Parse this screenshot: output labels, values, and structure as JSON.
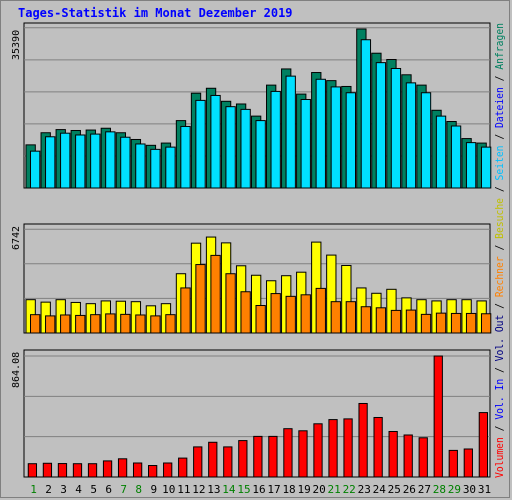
{
  "title": "Tages-Statistik im Monat Dezember 2019",
  "colors": {
    "anfragen": "#008060",
    "dateien": "#00e0ff",
    "seiten": "#00c0ff",
    "besuche": "#ffff00",
    "rechner": "#ff8000",
    "volumen": "#ff0000",
    "panel_bg": "#c0c0c0",
    "grid": "#808080",
    "weekday": "#000000",
    "weekend": "#008000",
    "title": "#0000ff"
  },
  "right_legend": {
    "volumen": "Volumen",
    "vol_in": "Vol. In",
    "vol_out": "Vol. Out",
    "rechner": "Rechner",
    "besuche": "Besuche",
    "seiten": "Seiten",
    "dateien": "Dateien",
    "anfragen": "Anfragen",
    "sep": "/"
  },
  "panels": {
    "top_max_label": "35390",
    "mid_max_label": "6742",
    "bot_max_label": "864.08"
  },
  "chart_data": [
    {
      "type": "bar",
      "panel": "top",
      "categories": [
        "1",
        "2",
        "3",
        "4",
        "5",
        "6",
        "7",
        "8",
        "9",
        "10",
        "11",
        "12",
        "13",
        "14",
        "15",
        "16",
        "17",
        "18",
        "19",
        "20",
        "21",
        "22",
        "23",
        "24",
        "25",
        "26",
        "27",
        "28",
        "29",
        "30",
        "31"
      ],
      "ylim": [
        0,
        35390
      ],
      "series": [
        {
          "name": "Anfragen",
          "values": [
            9600,
            12300,
            13000,
            12800,
            12900,
            13300,
            12300,
            10800,
            9500,
            10000,
            15000,
            21100,
            22200,
            19300,
            18700,
            16000,
            22900,
            26500,
            20900,
            25700,
            23900,
            22600,
            35390,
            30000,
            28600,
            25200,
            22900,
            17300,
            14800,
            11000,
            10000
          ]
        },
        {
          "name": "Dateien",
          "values": [
            8200,
            11400,
            12200,
            11800,
            12000,
            12500,
            11300,
            9800,
            8600,
            9100,
            13700,
            19500,
            20600,
            18100,
            17500,
            15000,
            21500,
            24900,
            19700,
            24200,
            22500,
            21200,
            33000,
            27900,
            26600,
            23400,
            21200,
            16000,
            13800,
            10100,
            9100
          ]
        }
      ]
    },
    {
      "type": "bar",
      "panel": "middle",
      "categories": [
        "1",
        "2",
        "3",
        "4",
        "5",
        "6",
        "7",
        "8",
        "9",
        "10",
        "11",
        "12",
        "13",
        "14",
        "15",
        "16",
        "17",
        "18",
        "19",
        "20",
        "21",
        "22",
        "23",
        "24",
        "25",
        "26",
        "27",
        "28",
        "29",
        "30",
        "31"
      ],
      "ylim": [
        0,
        6742
      ],
      "series": [
        {
          "name": "Besuche",
          "values": [
            2180,
            2020,
            2180,
            2000,
            1920,
            2100,
            2080,
            2050,
            1780,
            1920,
            3880,
            5880,
            6280,
            5900,
            4400,
            3780,
            3420,
            3750,
            3980,
            5950,
            5100,
            4420,
            2950,
            2600,
            2860,
            2300,
            2180,
            2100,
            2180,
            2180,
            2100
          ]
        },
        {
          "name": "Rechner",
          "values": [
            1200,
            1120,
            1180,
            1150,
            1200,
            1250,
            1220,
            1180,
            1120,
            1200,
            2950,
            4480,
            5080,
            3880,
            2700,
            1800,
            2580,
            2400,
            2500,
            2920,
            2050,
            2050,
            1720,
            1650,
            1480,
            1500,
            1220,
            1300,
            1280,
            1280,
            1260
          ]
        }
      ]
    },
    {
      "type": "bar",
      "panel": "bottom",
      "categories": [
        "1",
        "2",
        "3",
        "4",
        "5",
        "6",
        "7",
        "8",
        "9",
        "10",
        "11",
        "12",
        "13",
        "14",
        "15",
        "16",
        "17",
        "18",
        "19",
        "20",
        "21",
        "22",
        "23",
        "24",
        "25",
        "26",
        "27",
        "28",
        "29",
        "30",
        "31"
      ],
      "ylim": [
        0,
        864.08
      ],
      "series": [
        {
          "name": "Volumen",
          "values": [
            95,
            98,
            96,
            95,
            95,
            115,
            130,
            100,
            82,
            100,
            135,
            215,
            248,
            215,
            260,
            290,
            290,
            345,
            330,
            380,
            410,
            415,
            525,
            425,
            325,
            300,
            280,
            864,
            190,
            200,
            460
          ]
        }
      ]
    }
  ],
  "x_labels": [
    "1",
    "2",
    "3",
    "4",
    "5",
    "6",
    "7",
    "8",
    "9",
    "10",
    "11",
    "12",
    "13",
    "14",
    "15",
    "16",
    "17",
    "18",
    "19",
    "20",
    "21",
    "22",
    "23",
    "24",
    "25",
    "26",
    "27",
    "28",
    "29",
    "30",
    "31"
  ],
  "weekend_days": [
    "1",
    "7",
    "8",
    "14",
    "15",
    "21",
    "22",
    "28",
    "29"
  ]
}
